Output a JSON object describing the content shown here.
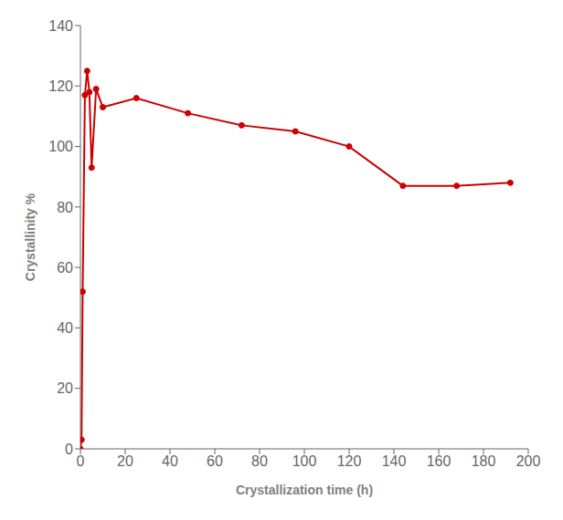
{
  "chart_data": {
    "type": "line",
    "x": [
      0,
      0.5,
      1,
      2,
      3,
      4,
      5,
      7,
      10,
      25,
      48,
      72,
      96,
      120,
      144,
      168,
      192
    ],
    "values": [
      0,
      3,
      52,
      117,
      125,
      118,
      93,
      119,
      113,
      116,
      111,
      107,
      105,
      100,
      87,
      87,
      88
    ],
    "color": "#cc0000",
    "marker": "circle",
    "xlabel": "Crystallization time (h)",
    "ylabel": "Crystallinity %",
    "xlim": [
      0,
      200
    ],
    "ylim": [
      0,
      140
    ],
    "xticks": [
      0,
      20,
      40,
      60,
      80,
      100,
      120,
      140,
      160,
      180,
      200
    ],
    "yticks": [
      0,
      20,
      40,
      60,
      80,
      100,
      120,
      140
    ],
    "grid": false
  }
}
